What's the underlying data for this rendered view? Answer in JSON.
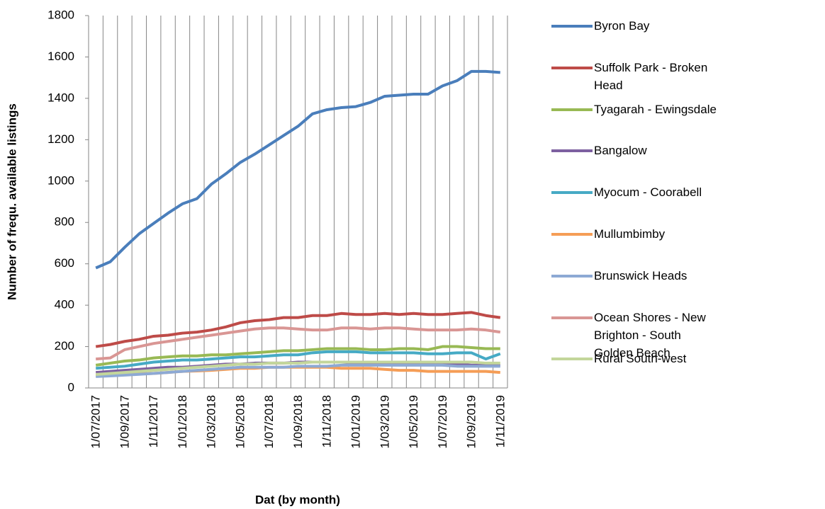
{
  "chart_data": {
    "type": "line",
    "y_label": "Number of  frequ. available listings",
    "x_label": "Dat (by month)",
    "categories": [
      "1/07/2017",
      null,
      "1/09/2017",
      null,
      "1/11/2017",
      null,
      "1/01/2018",
      null,
      "1/03/2018",
      null,
      "1/05/2018",
      null,
      "1/07/2018",
      null,
      "1/09/2018",
      null,
      "1/11/2018",
      null,
      "1/01/2019",
      null,
      "1/03/2019",
      null,
      "1/05/2019",
      null,
      "1/07/2019",
      null,
      "1/09/2019",
      null,
      "1/11/2019"
    ],
    "ylim": [
      0,
      1800
    ],
    "yticks": [
      0,
      200,
      400,
      600,
      800,
      1000,
      1200,
      1400,
      1600,
      1800
    ],
    "grid": "x",
    "legend": "right",
    "series": [
      {
        "name": "Byron Bay",
        "color": "#4a7ebb",
        "values": [
          580,
          610,
          680,
          745,
          795,
          845,
          890,
          915,
          985,
          1035,
          1090,
          1130,
          1175,
          1220,
          1265,
          1325,
          1345,
          1355,
          1360,
          1380,
          1410,
          1415,
          1420,
          1420,
          1460,
          1485,
          1530,
          1530,
          1525
        ]
      },
      {
        "name": "Suffolk Park - Broken Head",
        "color": "#be4b48",
        "values": [
          200,
          210,
          225,
          235,
          250,
          255,
          265,
          270,
          280,
          295,
          315,
          325,
          330,
          340,
          340,
          350,
          350,
          360,
          355,
          355,
          360,
          355,
          360,
          355,
          355,
          360,
          365,
          350,
          340
        ]
      },
      {
        "name": "Tyagarah - Ewingsdale",
        "color": "#98b954",
        "values": [
          110,
          120,
          130,
          135,
          145,
          150,
          155,
          155,
          160,
          160,
          165,
          170,
          175,
          180,
          180,
          185,
          190,
          190,
          190,
          185,
          185,
          190,
          190,
          185,
          200,
          200,
          195,
          190,
          190
        ]
      },
      {
        "name": "Bangalow",
        "color": "#7d60a0",
        "values": [
          75,
          80,
          85,
          90,
          95,
          100,
          100,
          105,
          110,
          115,
          115,
          120,
          120,
          120,
          125,
          125,
          125,
          125,
          120,
          120,
          120,
          120,
          120,
          115,
          115,
          115,
          110,
          110,
          110
        ]
      },
      {
        "name": "Myocum - Coorabell",
        "color": "#46aac5",
        "values": [
          95,
          100,
          105,
          115,
          125,
          130,
          135,
          135,
          140,
          145,
          150,
          150,
          155,
          160,
          160,
          170,
          175,
          175,
          175,
          170,
          170,
          170,
          170,
          165,
          165,
          170,
          170,
          140,
          165
        ]
      },
      {
        "name": "Mullumbimby",
        "color": "#f59d56",
        "values": [
          60,
          62,
          65,
          68,
          70,
          75,
          80,
          82,
          85,
          90,
          95,
          95,
          100,
          100,
          100,
          100,
          100,
          95,
          95,
          95,
          90,
          85,
          85,
          80,
          80,
          80,
          80,
          80,
          75
        ]
      },
      {
        "name": "Brunswick Heads",
        "color": "#8da9d4",
        "values": [
          55,
          58,
          62,
          66,
          70,
          75,
          80,
          85,
          90,
          95,
          100,
          100,
          100,
          100,
          105,
          105,
          105,
          110,
          110,
          110,
          110,
          110,
          110,
          110,
          110,
          105,
          105,
          105,
          105
        ]
      },
      {
        "name": "Ocean Shores - New Brighton - South Golden Beach",
        "color": "#d99694",
        "values": [
          140,
          145,
          185,
          200,
          215,
          225,
          235,
          245,
          255,
          265,
          275,
          285,
          290,
          290,
          285,
          280,
          280,
          290,
          290,
          285,
          290,
          290,
          285,
          280,
          280,
          280,
          285,
          280,
          270
        ]
      },
      {
        "name": "Rural South-west",
        "color": "#c3d69b",
        "values": [
          65,
          70,
          75,
          80,
          85,
          90,
          95,
          100,
          105,
          110,
          115,
          115,
          120,
          120,
          120,
          125,
          125,
          125,
          125,
          125,
          125,
          125,
          125,
          125,
          125,
          125,
          125,
          120,
          120
        ]
      }
    ]
  }
}
